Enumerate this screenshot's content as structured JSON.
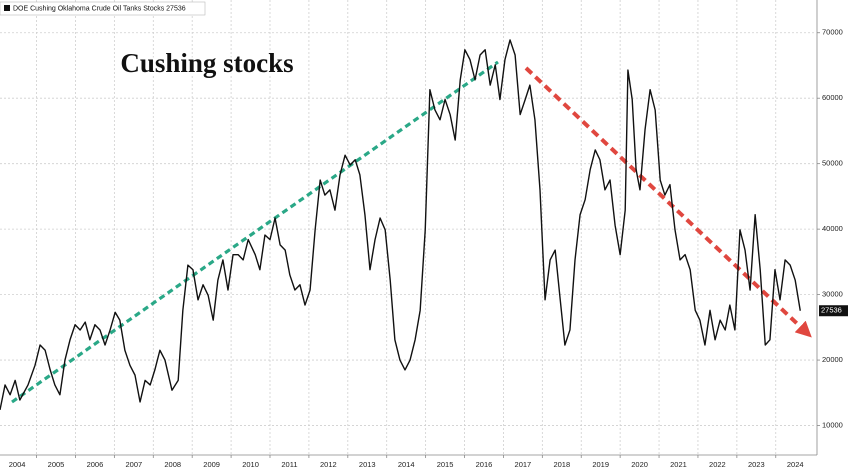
{
  "chart_data": {
    "type": "line",
    "annotation": "Cushing stocks",
    "xlim": [
      2004.06,
      2025.06
    ],
    "ylim": [
      5500,
      75000
    ],
    "xticks": [
      2004,
      2005,
      2006,
      2007,
      2008,
      2009,
      2010,
      2011,
      2012,
      2013,
      2014,
      2015,
      2016,
      2017,
      2018,
      2019,
      2020,
      2021,
      2022,
      2023,
      2024
    ],
    "yticks": [
      10000,
      20000,
      30000,
      40000,
      50000,
      60000,
      70000
    ],
    "grid": true,
    "legend": "top-left",
    "series": [
      {
        "name": "DOE Cushing Oklahoma Crude Oil Tanks Stocks 27536",
        "color": "#111111",
        "x": [
          2004.06,
          2004.19,
          2004.32,
          2004.45,
          2004.57,
          2004.78,
          2004.96,
          2005.09,
          2005.22,
          2005.35,
          2005.47,
          2005.6,
          2005.73,
          2005.86,
          2005.99,
          2006.12,
          2006.25,
          2006.37,
          2006.5,
          2006.63,
          2006.76,
          2006.89,
          2007.02,
          2007.14,
          2007.27,
          2007.4,
          2007.53,
          2007.66,
          2007.79,
          2007.92,
          2008.04,
          2008.17,
          2008.3,
          2008.48,
          2008.64,
          2008.76,
          2008.89,
          2009.02,
          2009.15,
          2009.28,
          2009.41,
          2009.54,
          2009.66,
          2009.79,
          2009.92,
          2010.05,
          2010.18,
          2010.31,
          2010.44,
          2010.62,
          2010.74,
          2010.87,
          2011.0,
          2011.13,
          2011.26,
          2011.39,
          2011.51,
          2011.64,
          2011.77,
          2011.9,
          2012.03,
          2012.16,
          2012.29,
          2012.41,
          2012.54,
          2012.67,
          2012.8,
          2012.93,
          2013.06,
          2013.19,
          2013.31,
          2013.44,
          2013.57,
          2013.7,
          2013.83,
          2013.96,
          2014.09,
          2014.21,
          2014.34,
          2014.47,
          2014.6,
          2014.73,
          2014.86,
          2014.99,
          2015.11,
          2015.24,
          2015.37,
          2015.5,
          2015.63,
          2015.76,
          2015.89,
          2016.01,
          2016.14,
          2016.27,
          2016.4,
          2016.53,
          2016.66,
          2016.79,
          2016.91,
          2017.04,
          2017.17,
          2017.3,
          2017.43,
          2017.56,
          2017.68,
          2017.81,
          2017.94,
          2018.07,
          2018.2,
          2018.33,
          2018.46,
          2018.58,
          2018.71,
          2018.84,
          2018.97,
          2019.1,
          2019.23,
          2019.36,
          2019.48,
          2019.61,
          2019.74,
          2019.87,
          2020.0,
          2020.13,
          2020.2,
          2020.31,
          2020.41,
          2020.51,
          2020.64,
          2020.77,
          2020.9,
          2021.03,
          2021.15,
          2021.28,
          2021.41,
          2021.54,
          2021.67,
          2021.8,
          2021.93,
          2022.05,
          2022.18,
          2022.31,
          2022.44,
          2022.57,
          2022.7,
          2022.82,
          2022.95,
          2023.08,
          2023.21,
          2023.34,
          2023.47,
          2023.6,
          2023.73,
          2023.85,
          2023.98,
          2024.11,
          2024.24,
          2024.37,
          2024.5,
          2024.63
        ],
        "values": [
          12400,
          16200,
          14700,
          16900,
          13900,
          16200,
          19200,
          22300,
          21500,
          18500,
          16200,
          14700,
          20000,
          23100,
          25400,
          24600,
          25800,
          23100,
          25400,
          24600,
          22300,
          24600,
          27300,
          26100,
          21500,
          19200,
          17700,
          13600,
          16900,
          16200,
          18500,
          21500,
          20000,
          15400,
          16900,
          27600,
          34500,
          33800,
          29200,
          31500,
          29900,
          26100,
          32200,
          35300,
          30700,
          36100,
          36100,
          35300,
          38400,
          36100,
          33800,
          39100,
          38400,
          41700,
          37600,
          36800,
          33000,
          30700,
          31500,
          28400,
          30700,
          39900,
          47500,
          45200,
          46000,
          42900,
          48300,
          51300,
          49800,
          50600,
          48300,
          42200,
          33800,
          38400,
          41700,
          39900,
          32200,
          23100,
          20000,
          18500,
          20000,
          23100,
          27600,
          39900,
          61300,
          58200,
          56700,
          59800,
          57500,
          53600,
          62800,
          67400,
          65900,
          62800,
          66600,
          67400,
          62000,
          65100,
          59800,
          65900,
          68900,
          66600,
          57500,
          59800,
          62000,
          56700,
          46000,
          29200,
          35300,
          36800,
          29200,
          22300,
          24600,
          35300,
          42200,
          44500,
          49100,
          52100,
          50600,
          46000,
          47500,
          40600,
          36100,
          42900,
          64300,
          59800,
          49100,
          46000,
          55200,
          61300,
          58200,
          47500,
          45200,
          46800,
          39900,
          35300,
          36100,
          33800,
          27600,
          26100,
          22300,
          27600,
          23100,
          26100,
          24600,
          28400,
          24600,
          39900,
          36800,
          30700,
          42200,
          33800,
          22300,
          23100,
          33800,
          29200,
          35300,
          34500,
          32200,
          27536
        ]
      }
    ]
  }
}
